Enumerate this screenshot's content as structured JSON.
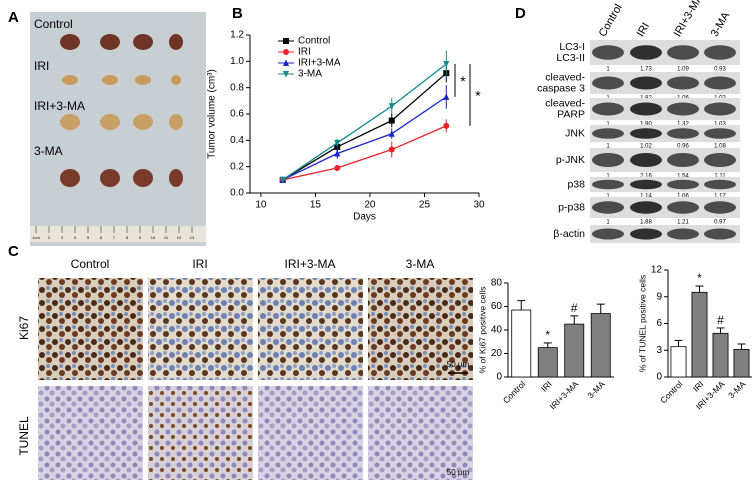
{
  "panel_labels": [
    "A",
    "B",
    "C",
    "D"
  ],
  "photo": {
    "groups": [
      "Control",
      "IRI",
      "IRI+3-MA",
      "3-MA"
    ],
    "ruler_labels": [
      "1cm",
      "2",
      "3",
      "4",
      "5",
      "6",
      "7",
      "8",
      "9",
      "10",
      "11",
      "12",
      "13"
    ]
  },
  "blot": {
    "columns": [
      "Control",
      "IRI",
      "IRI+3-MA",
      "3-MA"
    ],
    "rows": [
      {
        "labels": [
          "LC3-I",
          "LC3-II"
        ],
        "ratios": [
          "1",
          "1.73",
          "1.09",
          "0.93"
        ]
      },
      {
        "labels": [
          "cleaved-",
          "caspase 3"
        ],
        "ratios": [
          "1",
          "1.82",
          "1.06",
          "1.02"
        ]
      },
      {
        "labels": [
          "cleaved-",
          "PARP"
        ],
        "ratios": [
          "1",
          "1.90",
          "1.32",
          "1.03"
        ]
      },
      {
        "labels": [
          "JNK"
        ],
        "ratios": [
          "1",
          "1.02",
          "0.96",
          "1.08"
        ]
      },
      {
        "labels": [
          "p-JNK"
        ],
        "ratios": [
          "1",
          "2.16",
          "1.54",
          "1.11"
        ]
      },
      {
        "labels": [
          "p38"
        ],
        "ratios": [
          "1",
          "1.14",
          "1.06",
          "1.17"
        ]
      },
      {
        "labels": [
          "p-p38"
        ],
        "ratios": [
          "1",
          "1.88",
          "1.21",
          "0.97"
        ]
      },
      {
        "labels": [
          "β-actin"
        ]
      }
    ]
  },
  "histology": {
    "columns": [
      "Control",
      "IRI",
      "IRI+3-MA",
      "3-MA"
    ],
    "rows": [
      "Ki67",
      "TUNEL"
    ],
    "scale_bar": "50 μm"
  },
  "chart_data": [
    {
      "type": "line",
      "xlabel": "Days",
      "ylabel": "Tumor volume (cm³)",
      "x": [
        12,
        17,
        22,
        27
      ],
      "xlim": [
        9,
        30
      ],
      "xticks": [
        10,
        15,
        20,
        25,
        30
      ],
      "ylim": [
        0,
        1.2
      ],
      "yticks": [
        {
          "value": 0,
          "label": "0.0"
        },
        0.2,
        0.4,
        0.6,
        0.8,
        {
          "value": 1,
          "label": "1.0"
        },
        1.2
      ],
      "legend": "upper left",
      "annotations": [
        "*",
        "*"
      ],
      "series": [
        {
          "name": "Control",
          "color": "#000000",
          "marker": "square",
          "values": [
            0.1,
            0.35,
            0.55,
            0.91
          ],
          "errors": [
            0.01,
            0.04,
            0.05,
            0.07
          ]
        },
        {
          "name": "IRI",
          "color": "#e8212b",
          "marker": "circle",
          "values": [
            0.1,
            0.19,
            0.33,
            0.51
          ],
          "errors": [
            0.01,
            0.02,
            0.06,
            0.05
          ]
        },
        {
          "name": "IRI+3-MA",
          "color": "#1a22c8",
          "marker": "triangle-up",
          "values": [
            0.1,
            0.3,
            0.45,
            0.73
          ],
          "errors": [
            0.01,
            0.04,
            0.04,
            0.09
          ]
        },
        {
          "name": "3-MA",
          "color": "#118a8a",
          "marker": "triangle-down",
          "values": [
            0.1,
            0.38,
            0.66,
            0.98
          ],
          "errors": [
            0.01,
            0.03,
            0.06,
            0.1
          ]
        }
      ]
    },
    {
      "type": "bar",
      "ylabel": "% of Ki67 positive cells",
      "categories": [
        "Control",
        "IRI",
        "IRI+3-MA",
        "3-MA"
      ],
      "values": [
        57,
        25,
        45,
        54
      ],
      "errors": [
        8,
        4,
        7,
        8
      ],
      "colors": [
        "#ffffff",
        "#808080",
        "#808080",
        "#808080"
      ],
      "annotations": [
        null,
        "*",
        "#",
        null
      ],
      "ylim": [
        0,
        80
      ],
      "yticks": [
        0,
        20,
        40,
        60,
        80
      ]
    },
    {
      "type": "bar",
      "ylabel": "% of TUNEL positive cells",
      "categories": [
        "Control",
        "IRI",
        "IRI+3-MA",
        "3-MA"
      ],
      "values": [
        3.4,
        9.5,
        4.9,
        3.1
      ],
      "errors": [
        0.7,
        0.7,
        0.6,
        0.6
      ],
      "colors": [
        "#ffffff",
        "#808080",
        "#808080",
        "#808080"
      ],
      "annotations": [
        null,
        "*",
        "#",
        null
      ],
      "ylim": [
        0,
        12
      ],
      "yticks": [
        0,
        3,
        6,
        9,
        12
      ]
    }
  ]
}
